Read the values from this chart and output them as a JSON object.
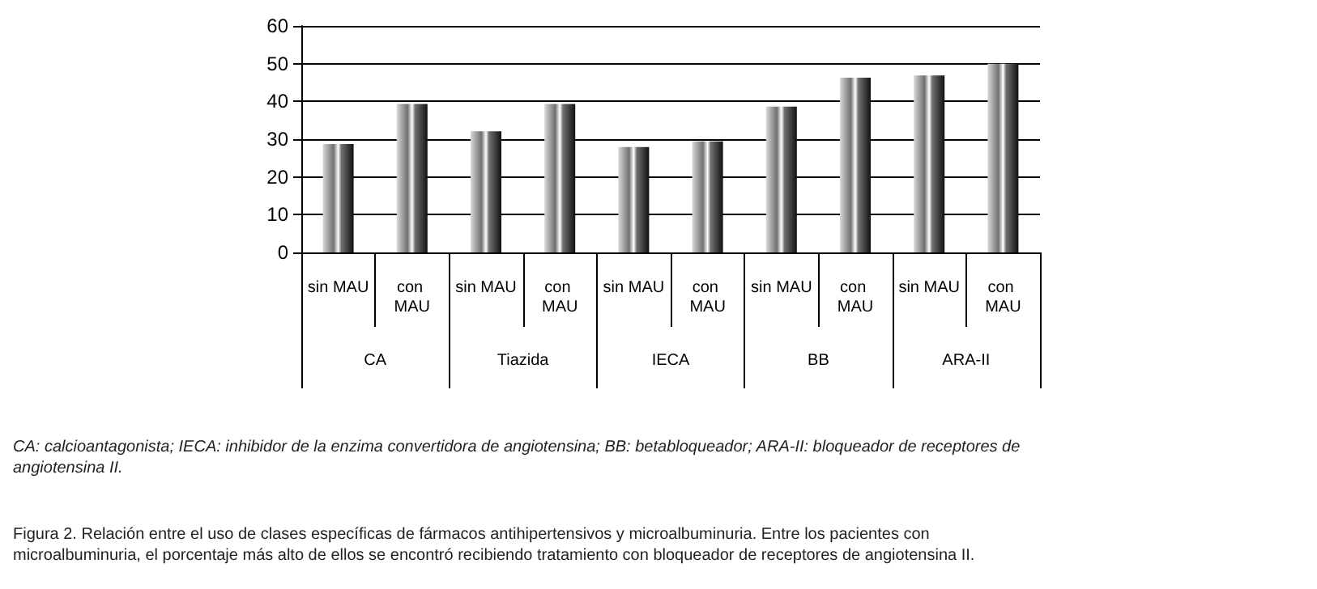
{
  "chart_data": {
    "type": "bar",
    "categories": [
      "sin MAU",
      "con MAU",
      "sin MAU",
      "con MAU",
      "sin MAU",
      "con MAU",
      "sin MAU",
      "con MAU",
      "sin MAU",
      "con MAU"
    ],
    "values": [
      28.7,
      39.3,
      32.1,
      39.3,
      27.9,
      29.4,
      38.6,
      46.3,
      46.9,
      50.0
    ],
    "color": "#707070",
    "ylim": [
      0,
      60
    ],
    "yticks": [
      0,
      10,
      20,
      30,
      40,
      50,
      60
    ],
    "grid": "y",
    "annotations": [
      "CA",
      "Tiazida",
      "IECA",
      "BB",
      "ARA-II",
      "CA: calcioantagonista; IECA: inhibidor de la enzima convertidora de angiotensina; BB: betabloqueador; ARA-II: bloqueador de receptores de angiotensina II.",
      "Figura 2. Relación entre el uso de clases específicas de fármacos antihipertensivos y microalbuminuria. Entre los pacientes con microalbuminuria, el porcentaje más alto de ellos se encontró recibiendo tratamiento con bloqueador de receptores de angiotensina II."
    ]
  }
}
